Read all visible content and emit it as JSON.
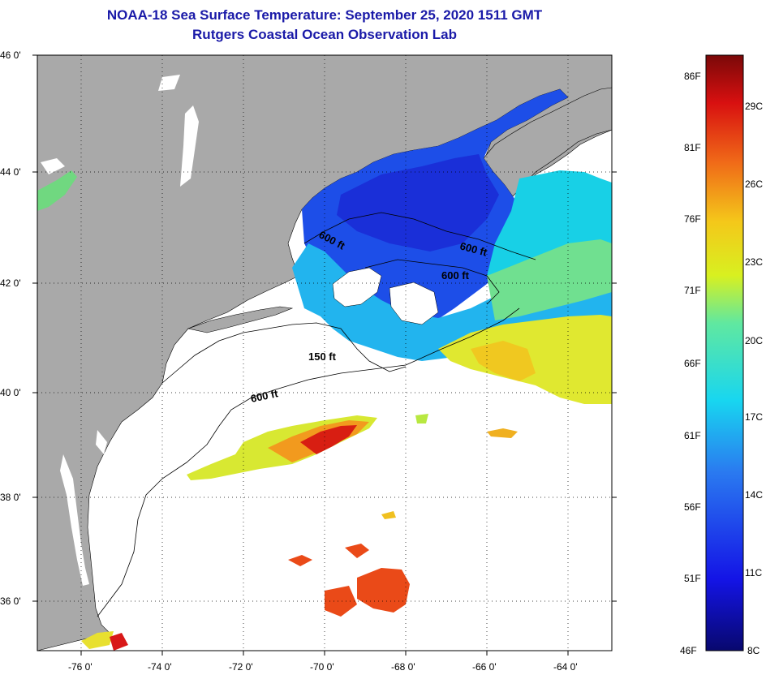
{
  "title_line1": "NOAA-18 Sea Surface Temperature:  September 25, 2020 1511 GMT",
  "title_line2": "Rutgers Coastal Ocean Observation Lab",
  "lat_labels": [
    "46 0'",
    "44 0'",
    "42 0'",
    "40 0'",
    "38 0'",
    "36 0'"
  ],
  "lon_labels": [
    "-76 0'",
    "-74 0'",
    "-72 0'",
    "-70 0'",
    "-68 0'",
    "-66 0'",
    "-64 0'"
  ],
  "contour_labels": [
    "600 ft",
    "600 ft",
    "600 ft",
    "150 ft",
    "600 ft"
  ],
  "colorbar": {
    "fahrenheit": [
      "86F",
      "81F",
      "76F",
      "71F",
      "66F",
      "61F",
      "56F",
      "51F",
      "46F"
    ],
    "celsius": [
      "29C",
      "26C",
      "23C",
      "20C",
      "17C",
      "14C",
      "11C",
      "8C"
    ]
  },
  "colors": {
    "title": "#1a1aa8",
    "land": "#a9a9a9",
    "ocean": "#ffffff"
  }
}
